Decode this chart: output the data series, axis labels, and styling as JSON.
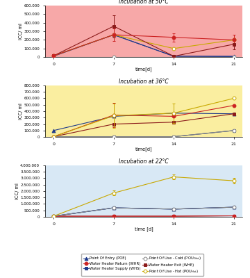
{
  "time": [
    0,
    7,
    14,
    21
  ],
  "panel1": {
    "title": "Incubation at 50°C",
    "bg_color": "#f7a8a8",
    "ylim": [
      0,
      600000
    ],
    "yticks": [
      0,
      100000,
      200000,
      300000,
      400000,
      500000,
      600000
    ],
    "ytick_labels": [
      "0",
      "100.000",
      "200.000",
      "300.000",
      "400.000",
      "500.000",
      "600.000"
    ],
    "ylabel": "ICC/ ml",
    "xlabel": "time[d]",
    "series": {
      "POE": {
        "values": [
          15000,
          260000,
          10000,
          10000
        ],
        "color": "#1f3a8a",
        "marker": "^",
        "filled": true,
        "yerr": [
          0,
          0,
          0,
          0
        ]
      },
      "WHS": {
        "values": [
          10000,
          260000,
          10000,
          5000
        ],
        "color": "#1f3a8a",
        "marker": "s",
        "filled": true,
        "yerr": [
          0,
          0,
          0,
          0
        ]
      },
      "WHE": {
        "values": [
          15000,
          360000,
          10000,
          150000
        ],
        "color": "#8B1a1a",
        "marker": "s",
        "filled": true,
        "yerr": [
          0,
          130000,
          0,
          60000
        ]
      },
      "WHR": {
        "values": [
          15000,
          260000,
          230000,
          200000
        ],
        "color": "#cc2222",
        "marker": "o",
        "filled": true,
        "yerr": [
          0,
          70000,
          50000,
          60000
        ]
      },
      "POUc": {
        "values": [
          5000,
          5000,
          5000,
          5000
        ],
        "color": "#888888",
        "marker": "o",
        "filled": false,
        "yerr": [
          0,
          0,
          0,
          0
        ]
      },
      "POUh": {
        "values": [
          15000,
          260000,
          100000,
          200000
        ],
        "color": "#c8a800",
        "marker": "o",
        "filled": false,
        "yerr": [
          0,
          0,
          0,
          0
        ]
      }
    }
  },
  "panel2": {
    "title": "Incubation at 36°C",
    "bg_color": "#faeea0",
    "ylim": [
      0,
      800000
    ],
    "yticks": [
      0,
      100000,
      200000,
      300000,
      400000,
      500000,
      600000,
      700000,
      800000
    ],
    "ytick_labels": [
      "0",
      "100.000",
      "200.000",
      "300.000",
      "400.000",
      "500.000",
      "600.000",
      "700.000",
      "800.000"
    ],
    "ylabel": "ICC/ ml",
    "xlabel": "time[d]",
    "series": {
      "POE": {
        "values": [
          100000,
          320000,
          370000,
          360000
        ],
        "color": "#1f3a8a",
        "marker": "^",
        "filled": true,
        "yerr": [
          0,
          0,
          0,
          0
        ]
      },
      "WHS": {
        "values": [
          5000,
          5000,
          5000,
          100000
        ],
        "color": "#1f3a8a",
        "marker": "s",
        "filled": true,
        "yerr": [
          0,
          0,
          0,
          0
        ]
      },
      "WHE": {
        "values": [
          5000,
          200000,
          230000,
          360000
        ],
        "color": "#8B1a1a",
        "marker": "s",
        "filled": true,
        "yerr": [
          0,
          0,
          0,
          0
        ]
      },
      "WHR": {
        "values": [
          5000,
          340000,
          320000,
          490000
        ],
        "color": "#cc2222",
        "marker": "o",
        "filled": true,
        "yerr": [
          0,
          190000,
          0,
          0
        ]
      },
      "POUc": {
        "values": [
          5000,
          5000,
          5000,
          100000
        ],
        "color": "#888888",
        "marker": "o",
        "filled": false,
        "yerr": [
          0,
          0,
          0,
          0
        ]
      },
      "POUh": {
        "values": [
          5000,
          330000,
          370000,
          600000
        ],
        "color": "#c8a800",
        "marker": "o",
        "filled": false,
        "yerr": [
          0,
          190000,
          150000,
          0
        ]
      }
    }
  },
  "panel3": {
    "title": "Incubation at 22°C",
    "bg_color": "#d8e8f5",
    "ylim": [
      0,
      4000000
    ],
    "yticks": [
      0,
      500000,
      1000000,
      1500000,
      2000000,
      2500000,
      3000000,
      3500000,
      4000000
    ],
    "ytick_labels": [
      "0",
      "500.000",
      "1.000.000",
      "1.500.000",
      "2.000.000",
      "2.500.000",
      "3.000.000",
      "3.500.000",
      "4.000.000"
    ],
    "ylabel": "ICC/ ml",
    "xlabel": "time [d]",
    "series": {
      "POE": {
        "values": [
          50000,
          700000,
          600000,
          750000
        ],
        "color": "#1f3a8a",
        "marker": "^",
        "filled": true,
        "yerr": [
          0,
          0,
          0,
          0
        ]
      },
      "WHS": {
        "values": [
          50000,
          700000,
          600000,
          750000
        ],
        "color": "#1f3a8a",
        "marker": "s",
        "filled": true,
        "yerr": [
          0,
          0,
          0,
          0
        ]
      },
      "WHE": {
        "values": [
          50000,
          50000,
          50000,
          80000
        ],
        "color": "#8B1a1a",
        "marker": "s",
        "filled": true,
        "yerr": [
          0,
          0,
          0,
          0
        ]
      },
      "WHR": {
        "values": [
          50000,
          50000,
          50000,
          80000
        ],
        "color": "#cc2222",
        "marker": "o",
        "filled": true,
        "yerr": [
          0,
          0,
          0,
          0
        ]
      },
      "POUc": {
        "values": [
          50000,
          700000,
          600000,
          750000
        ],
        "color": "#888888",
        "marker": "o",
        "filled": false,
        "yerr": [
          0,
          0,
          0,
          0
        ]
      },
      "POUh": {
        "values": [
          50000,
          1850000,
          3100000,
          2800000
        ],
        "color": "#c8a800",
        "marker": "o",
        "filled": false,
        "yerr": [
          0,
          200000,
          200000,
          200000
        ]
      }
    }
  },
  "legend_display": [
    {
      "label": "Point Of Entry (POE)",
      "color": "#1f3a8a",
      "marker": "^",
      "filled": true
    },
    {
      "label": "Water Heater Return (WHR)",
      "color": "#cc2222",
      "marker": "o",
      "filled": true
    },
    {
      "label": "Water Heater Supply (WHS)",
      "color": "#1f3a8a",
      "marker": "s",
      "filled": true
    },
    {
      "label": "Point Of Use - Cold (POU$_{Cold}$)",
      "color": "#888888",
      "marker": "o",
      "filled": false
    },
    {
      "label": "Water Heater Exit (WHE)",
      "color": "#8B1a1a",
      "marker": "s",
      "filled": true
    },
    {
      "label": "Point Of Use - Hot (POU$_{Hot}$)",
      "color": "#c8a800",
      "marker": "o",
      "filled": false
    }
  ]
}
